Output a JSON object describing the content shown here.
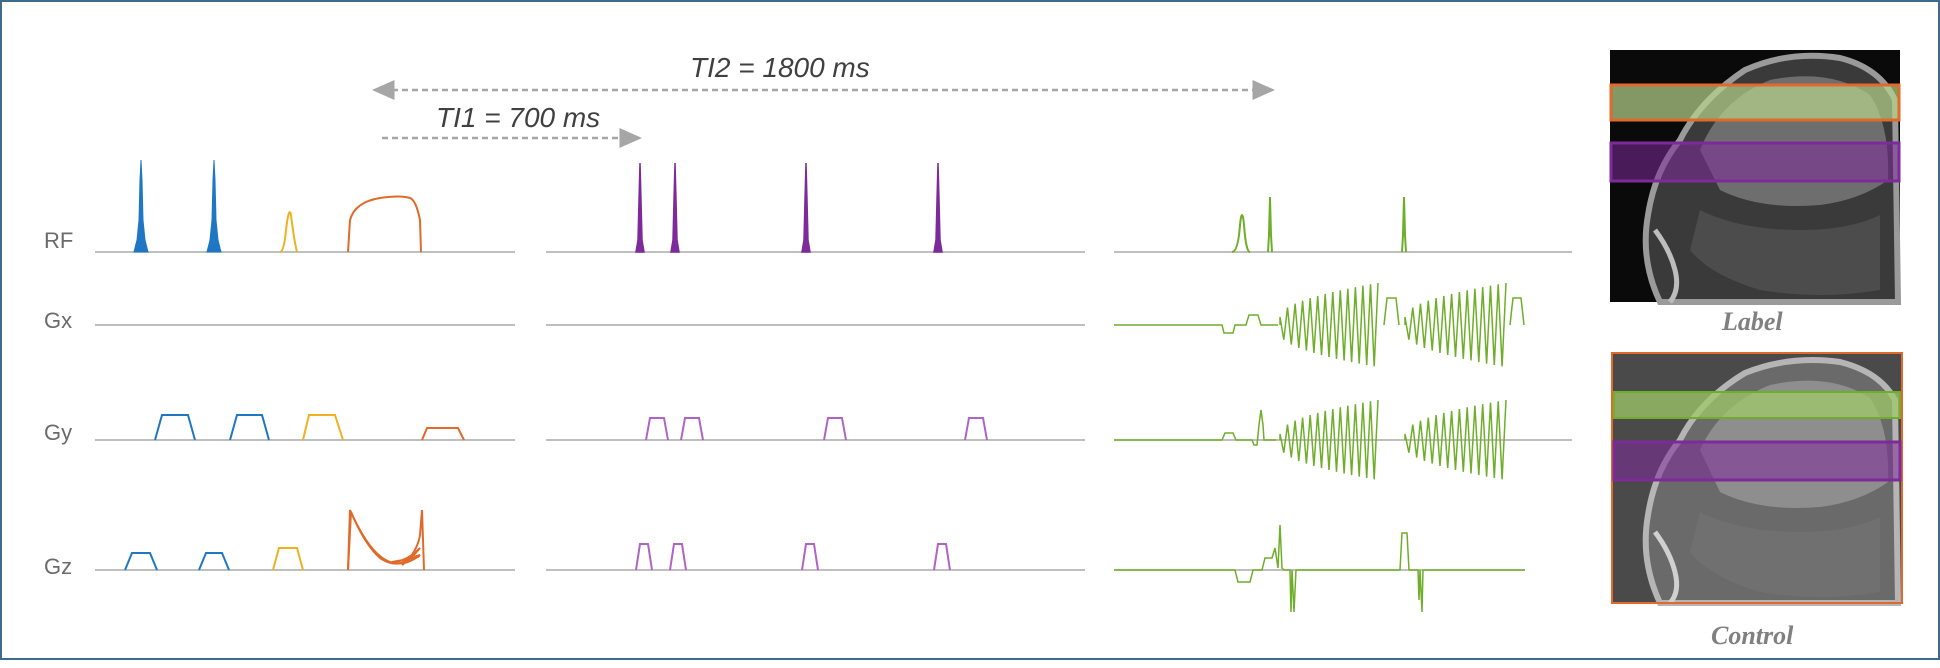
{
  "ti2_label": "TI2 = 1800 ms",
  "ti1_label": "TI1 = 700 ms",
  "rows": [
    {
      "label": "RF"
    },
    {
      "label": "Gx"
    },
    {
      "label": "Gy"
    },
    {
      "label": "Gz"
    }
  ],
  "images": {
    "label_caption": "Label",
    "control_caption": "Control"
  },
  "colors": {
    "frame": "#3f6a8c",
    "saturation": "#1f77c4",
    "prep": "#f0b020",
    "labeling": "#e06a2a",
    "background_suppression": "#7d2a9a",
    "readout": "#6fae2a",
    "arrow": "#a6a6a6"
  }
}
